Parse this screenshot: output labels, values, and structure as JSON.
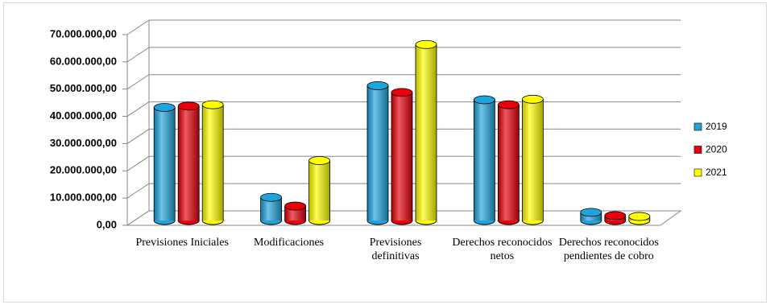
{
  "chart_data": {
    "type": "bar",
    "categories": [
      "Previsiones Iniciales",
      "Modificaciones",
      "Previsiones definitivas",
      "Derechos reconocidos netos",
      "Derechos reconocidos pendientes de cobro"
    ],
    "series": [
      {
        "name": "2019",
        "color": "#1fa3dc",
        "values": [
          41500000,
          8500000,
          49500000,
          44300000,
          3000000
        ]
      },
      {
        "name": "2020",
        "color": "#e8000b",
        "values": [
          42000000,
          5300000,
          47000000,
          42500000,
          1800000
        ]
      },
      {
        "name": "2021",
        "color": "#ffff00",
        "values": [
          42500000,
          22000000,
          64600000,
          44500000,
          1500000
        ]
      }
    ],
    "ylim": [
      0,
      70000000
    ],
    "yticks": [
      {
        "value": 0,
        "label": "0,00"
      },
      {
        "value": 10000000,
        "label": "10.000.000,00"
      },
      {
        "value": 20000000,
        "label": "20.000.000,00"
      },
      {
        "value": 30000000,
        "label": "30.000.000,00"
      },
      {
        "value": 40000000,
        "label": "40.000.000,00"
      },
      {
        "value": 50000000,
        "label": "50.000.000,00"
      },
      {
        "value": 60000000,
        "label": "60.000.000,00"
      },
      {
        "value": 70000000,
        "label": "70.000.000,00"
      }
    ],
    "grid": true,
    "legend": "right"
  }
}
